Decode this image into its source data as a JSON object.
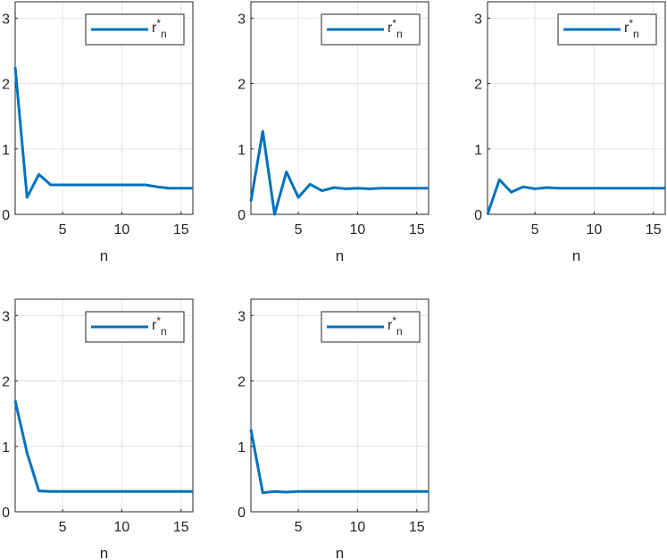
{
  "figure": {
    "background": "#ffffff"
  },
  "style": {
    "line_color": "#0072BD",
    "grid_color": "#e3e3e3",
    "axis_color": "#262626"
  },
  "chart_data": [
    {
      "type": "line",
      "xlabel": "n",
      "ylabel": "",
      "xlim": [
        1,
        16
      ],
      "ylim": [
        0,
        3.25
      ],
      "xticks": [
        5,
        10,
        15
      ],
      "yticks": [
        0,
        1,
        2,
        3
      ],
      "grid": true,
      "legend_position": "top-right",
      "legend": {
        "base": "r",
        "sup": "*",
        "sub": "n"
      },
      "x": [
        1,
        2,
        3,
        4,
        5,
        6,
        7,
        8,
        9,
        10,
        11,
        12,
        13,
        14,
        15,
        16
      ],
      "series": [
        {
          "values": [
            2.25,
            0.26,
            0.61,
            0.45,
            0.45,
            0.45,
            0.45,
            0.45,
            0.45,
            0.45,
            0.45,
            0.45,
            0.42,
            0.4,
            0.4,
            0.4
          ]
        }
      ]
    },
    {
      "type": "line",
      "xlabel": "n",
      "ylabel": "",
      "xlim": [
        1,
        16
      ],
      "ylim": [
        0,
        3.25
      ],
      "xticks": [
        5,
        10,
        15
      ],
      "yticks": [
        0,
        1,
        2,
        3
      ],
      "grid": true,
      "legend_position": "top-right",
      "legend": {
        "base": "r",
        "sup": "*",
        "sub": "n"
      },
      "x": [
        1,
        2,
        3,
        4,
        5,
        6,
        7,
        8,
        9,
        10,
        11,
        12,
        13,
        14,
        15,
        16
      ],
      "series": [
        {
          "values": [
            0.2,
            1.27,
            0.0,
            0.65,
            0.26,
            0.46,
            0.36,
            0.41,
            0.39,
            0.4,
            0.39,
            0.4,
            0.4,
            0.4,
            0.4,
            0.4
          ]
        }
      ]
    },
    {
      "type": "line",
      "xlabel": "n",
      "ylabel": "",
      "xlim": [
        1,
        16
      ],
      "ylim": [
        0,
        3.25
      ],
      "xticks": [
        5,
        10,
        15
      ],
      "yticks": [
        0,
        1,
        2,
        3
      ],
      "grid": true,
      "legend_position": "top-right",
      "legend": {
        "base": "r",
        "sup": "*",
        "sub": "n"
      },
      "x": [
        1,
        2,
        3,
        4,
        5,
        6,
        7,
        8,
        9,
        10,
        11,
        12,
        13,
        14,
        15,
        16
      ],
      "series": [
        {
          "values": [
            0.0,
            0.53,
            0.34,
            0.42,
            0.39,
            0.41,
            0.4,
            0.4,
            0.4,
            0.4,
            0.4,
            0.4,
            0.4,
            0.4,
            0.4,
            0.4
          ]
        }
      ]
    },
    {
      "type": "line",
      "xlabel": "n",
      "ylabel": "",
      "xlim": [
        1,
        16
      ],
      "ylim": [
        0,
        3.25
      ],
      "xticks": [
        5,
        10,
        15
      ],
      "yticks": [
        0,
        1,
        2,
        3
      ],
      "grid": true,
      "legend_position": "top-right",
      "legend": {
        "base": "r",
        "sup": "*",
        "sub": "n"
      },
      "x": [
        1,
        2,
        3,
        4,
        5,
        6,
        7,
        8,
        9,
        10,
        11,
        12,
        13,
        14,
        15,
        16
      ],
      "series": [
        {
          "values": [
            1.7,
            0.9,
            0.32,
            0.31,
            0.31,
            0.31,
            0.31,
            0.31,
            0.31,
            0.31,
            0.31,
            0.31,
            0.31,
            0.31,
            0.31,
            0.31
          ]
        }
      ]
    },
    {
      "type": "line",
      "xlabel": "n",
      "ylabel": "",
      "xlim": [
        1,
        16
      ],
      "ylim": [
        0,
        3.25
      ],
      "xticks": [
        5,
        10,
        15
      ],
      "yticks": [
        0,
        1,
        2,
        3
      ],
      "grid": true,
      "legend_position": "top-right",
      "legend": {
        "base": "r",
        "sup": "*",
        "sub": "n"
      },
      "x": [
        1,
        2,
        3,
        4,
        5,
        6,
        7,
        8,
        9,
        10,
        11,
        12,
        13,
        14,
        15,
        16
      ],
      "series": [
        {
          "values": [
            1.26,
            0.29,
            0.31,
            0.3,
            0.31,
            0.31,
            0.31,
            0.31,
            0.31,
            0.31,
            0.31,
            0.31,
            0.31,
            0.31,
            0.31,
            0.31
          ]
        }
      ]
    }
  ]
}
